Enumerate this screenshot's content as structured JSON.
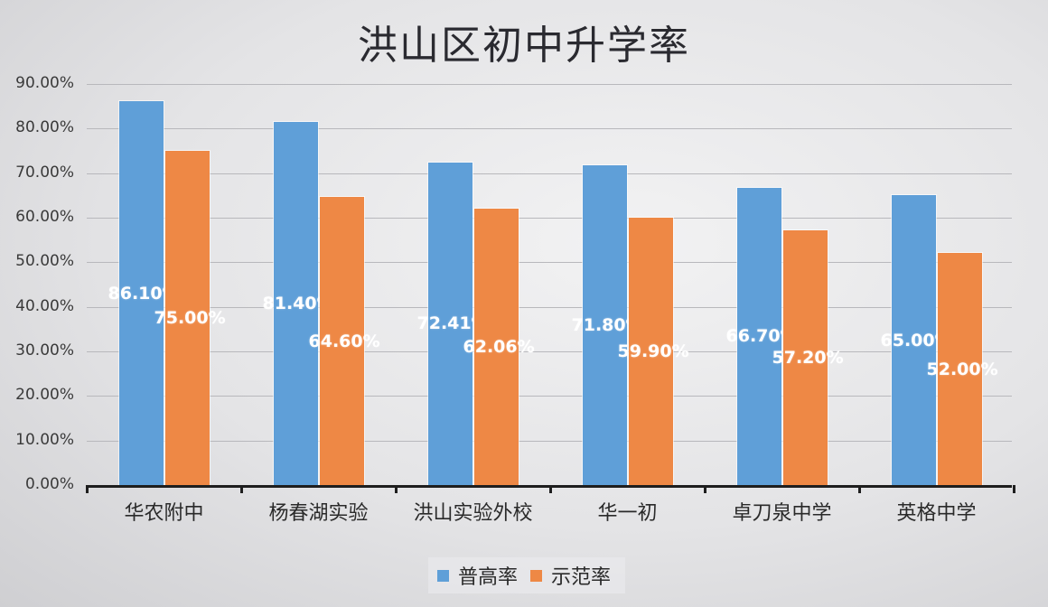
{
  "chart_data": {
    "type": "bar",
    "title": "洪山区初中升学率",
    "xlabel": "",
    "ylabel": "",
    "ylim": [
      0,
      90
    ],
    "yticks": [
      "0.00%",
      "10.00%",
      "20.00%",
      "30.00%",
      "40.00%",
      "50.00%",
      "60.00%",
      "70.00%",
      "80.00%",
      "90.00%"
    ],
    "grid": true,
    "legend_position": "bottom",
    "categories": [
      "华农附中",
      "杨春湖实验",
      "洪山实验外校",
      "华一初",
      "卓刀泉中学",
      "英格中学"
    ],
    "series": [
      {
        "name": "普高率",
        "color": "#5f9fd8",
        "values": [
          86.1,
          81.4,
          72.41,
          71.8,
          66.7,
          65.0
        ],
        "labels": [
          "86.10%",
          "81.40%",
          "72.41%",
          "71.80%",
          "66.70%",
          "65.00%"
        ]
      },
      {
        "name": "示范率",
        "color": "#ee8845",
        "values": [
          75.0,
          64.6,
          62.06,
          59.9,
          57.2,
          52.0
        ],
        "labels": [
          "75.00%",
          "64.60%",
          "62.06%",
          "59.90%",
          "57.20%",
          "52.00%"
        ]
      }
    ]
  }
}
